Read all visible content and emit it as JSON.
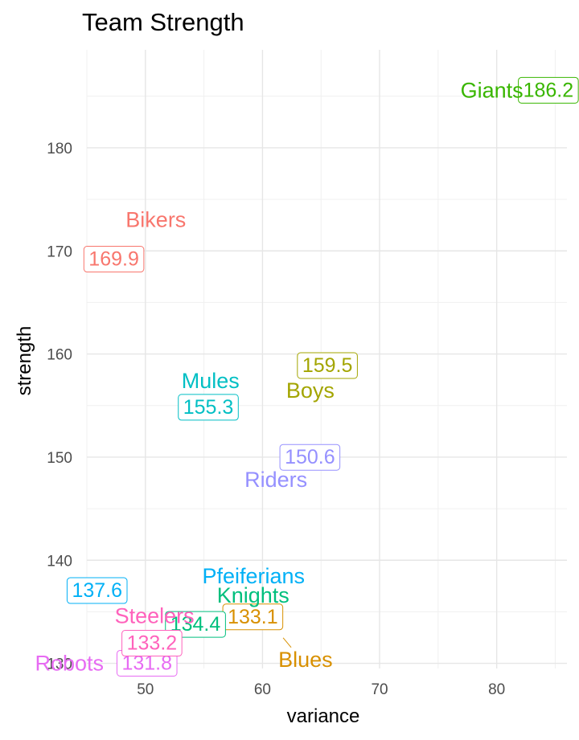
{
  "chart_data": {
    "type": "scatter",
    "title": "Team Strength",
    "xlabel": "variance",
    "ylabel": "strength",
    "xlim": [
      45,
      86
    ],
    "ylim": [
      129.5,
      189.5
    ],
    "x_ticks": [
      50,
      60,
      70,
      80
    ],
    "y_ticks": [
      130,
      140,
      150,
      160,
      170,
      180
    ],
    "grid": true,
    "legend": "none",
    "points": [
      {
        "name": "Bikers",
        "value_label": "169.9",
        "x": 53.4,
        "y": 169.9,
        "color": "#F8766D"
      },
      {
        "name": "Blues",
        "value_label": "133.1",
        "x": 61.9,
        "y": 133.1,
        "color": "#D89000"
      },
      {
        "name": "Boys",
        "value_label": "159.5",
        "x": 63.6,
        "y": 159.5,
        "color": "#A3A500"
      },
      {
        "name": "Giants",
        "value_label": "186.2",
        "x": 82.4,
        "y": 186.2,
        "color": "#39B600"
      },
      {
        "name": "Knights",
        "value_label": "134.4",
        "x": 57.0,
        "y": 134.4,
        "color": "#00BF7D"
      },
      {
        "name": "Mules",
        "value_label": "155.3",
        "x": 58.1,
        "y": 155.3,
        "color": "#00BFC4"
      },
      {
        "name": "Pfeiferians",
        "value_label": "137.6",
        "x": 44.0,
        "y": 137.6,
        "color": "#00B0F6"
      },
      {
        "name": "Riders",
        "value_label": "150.6",
        "x": 61.9,
        "y": 150.6,
        "color": "#9590FF"
      },
      {
        "name": "Robots",
        "value_label": "131.8",
        "x": 51.9,
        "y": 131.8,
        "color": "#E76BF3"
      },
      {
        "name": "Steelers",
        "value_label": "133.2",
        "x": 55.0,
        "y": 133.2,
        "color": "#FF62BC"
      }
    ]
  }
}
